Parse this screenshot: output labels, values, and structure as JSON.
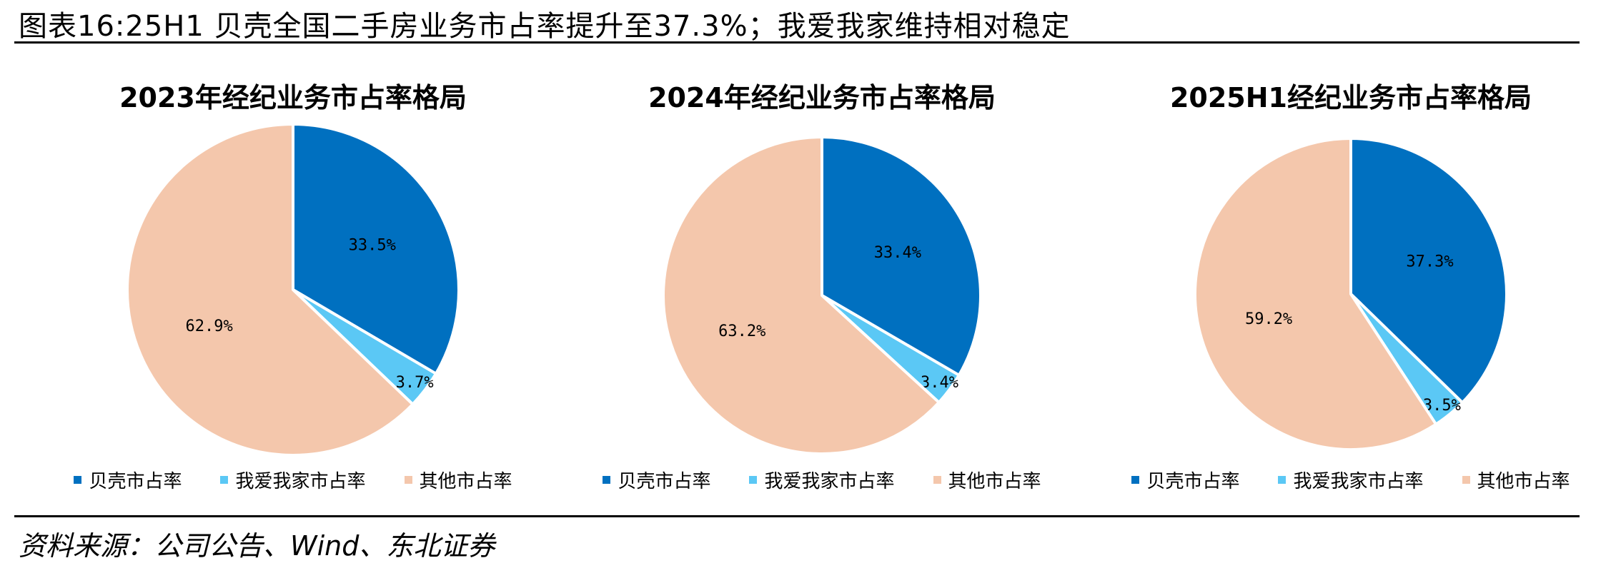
{
  "figure_title": "图表16:25H1 贝壳全国二手房业务市占率提升至37.3%；我爱我家维持相对稳定",
  "source": "资料来源：公司公告、Wind、东北证券",
  "colors": {
    "beike": "#0070C0",
    "5i5j": "#5BC8F5",
    "other": "#F4C7AC"
  },
  "chart_data": [
    {
      "type": "pie",
      "title": "2023年经纪业务市占率格局",
      "labels": [
        "贝壳市占率",
        "我爱我家市占率",
        "其他市占率"
      ],
      "values": [
        33.5,
        3.7,
        62.9
      ],
      "value_labels": [
        "33.5%",
        "3.7%",
        "62.9%"
      ],
      "legend_position": "bottom"
    },
    {
      "type": "pie",
      "title": "2024年经纪业务市占率格局",
      "labels": [
        "贝壳市占率",
        "我爱我家市占率",
        "其他市占率"
      ],
      "values": [
        33.4,
        3.4,
        63.2
      ],
      "value_labels": [
        "33.4%",
        "3.4%",
        "63.2%"
      ],
      "legend_position": "bottom"
    },
    {
      "type": "pie",
      "title": "2025H1经纪业务市占率格局",
      "labels": [
        "贝壳市占率",
        "我爱我家市占率",
        "其他市占率"
      ],
      "values": [
        37.3,
        3.5,
        59.2
      ],
      "value_labels": [
        "37.3%",
        "3.5%",
        "59.2%"
      ],
      "legend_position": "bottom"
    }
  ]
}
